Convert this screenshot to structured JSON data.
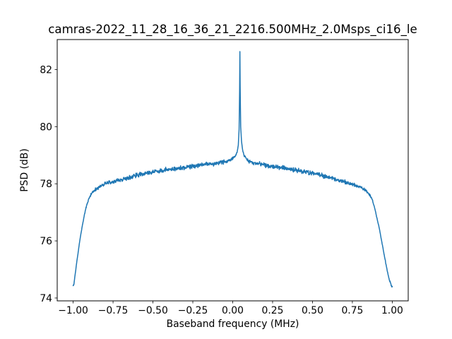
{
  "chart_data": {
    "type": "line",
    "title": "camras-2022_11_28_16_36_21_2216.500MHz_2.0Msps_ci16_le",
    "xlabel": "Baseband frequency (MHz)",
    "ylabel": "PSD (dB)",
    "xlim": [
      -1.1,
      1.1
    ],
    "ylim": [
      73.9,
      83.05
    ],
    "xticks": [
      -1.0,
      -0.75,
      -0.5,
      -0.25,
      0.0,
      0.25,
      0.5,
      0.75,
      1.0
    ],
    "xtick_labels": [
      "−1.00",
      "−0.75",
      "−0.50",
      "−0.25",
      "0.00",
      "0.25",
      "0.50",
      "0.75",
      "1.00"
    ],
    "yticks": [
      74,
      76,
      78,
      80,
      82
    ],
    "ytick_labels": [
      "74",
      "76",
      "78",
      "80",
      "82"
    ],
    "grid": false,
    "legend": null,
    "line_color": "#1f77b4",
    "line_width": 1.5,
    "noise_db": 0.065,
    "peak": {
      "x_mhz": 0.045,
      "psd_db": 82.62
    },
    "series": [
      {
        "name": "PSD",
        "points": [
          [
            -1.0,
            74.42
          ],
          [
            -0.995,
            74.5
          ],
          [
            -0.99,
            74.72
          ],
          [
            -0.98,
            75.15
          ],
          [
            -0.97,
            75.55
          ],
          [
            -0.96,
            75.95
          ],
          [
            -0.95,
            76.3
          ],
          [
            -0.94,
            76.6
          ],
          [
            -0.93,
            76.9
          ],
          [
            -0.92,
            77.15
          ],
          [
            -0.91,
            77.35
          ],
          [
            -0.9,
            77.5
          ],
          [
            -0.89,
            77.6
          ],
          [
            -0.88,
            77.7
          ],
          [
            -0.86,
            77.8
          ],
          [
            -0.83,
            77.9
          ],
          [
            -0.8,
            78.0
          ],
          [
            -0.75,
            78.08
          ],
          [
            -0.7,
            78.15
          ],
          [
            -0.65,
            78.22
          ],
          [
            -0.6,
            78.3
          ],
          [
            -0.55,
            78.36
          ],
          [
            -0.5,
            78.42
          ],
          [
            -0.45,
            78.46
          ],
          [
            -0.4,
            78.5
          ],
          [
            -0.35,
            78.54
          ],
          [
            -0.3,
            78.58
          ],
          [
            -0.25,
            78.62
          ],
          [
            -0.2,
            78.66
          ],
          [
            -0.15,
            78.7
          ],
          [
            -0.1,
            78.72
          ],
          [
            -0.06,
            78.76
          ],
          [
            -0.03,
            78.8
          ],
          [
            -0.01,
            78.85
          ],
          [
            0.005,
            78.9
          ],
          [
            0.018,
            78.98
          ],
          [
            0.028,
            79.12
          ],
          [
            0.035,
            79.35
          ],
          [
            0.04,
            79.9
          ],
          [
            0.043,
            81.0
          ],
          [
            0.045,
            82.62
          ],
          [
            0.047,
            81.2
          ],
          [
            0.05,
            80.0
          ],
          [
            0.055,
            79.5
          ],
          [
            0.062,
            79.18
          ],
          [
            0.072,
            78.98
          ],
          [
            0.085,
            78.88
          ],
          [
            0.1,
            78.8
          ],
          [
            0.13,
            78.74
          ],
          [
            0.17,
            78.7
          ],
          [
            0.22,
            78.64
          ],
          [
            0.27,
            78.6
          ],
          [
            0.32,
            78.55
          ],
          [
            0.37,
            78.5
          ],
          [
            0.42,
            78.45
          ],
          [
            0.47,
            78.4
          ],
          [
            0.52,
            78.34
          ],
          [
            0.57,
            78.28
          ],
          [
            0.62,
            78.2
          ],
          [
            0.67,
            78.12
          ],
          [
            0.72,
            78.04
          ],
          [
            0.76,
            77.96
          ],
          [
            0.8,
            77.88
          ],
          [
            0.83,
            77.78
          ],
          [
            0.85,
            77.68
          ],
          [
            0.86,
            77.6
          ],
          [
            0.87,
            77.5
          ],
          [
            0.88,
            77.35
          ],
          [
            0.89,
            77.15
          ],
          [
            0.9,
            76.9
          ],
          [
            0.91,
            76.65
          ],
          [
            0.92,
            76.4
          ],
          [
            0.93,
            76.1
          ],
          [
            0.94,
            75.8
          ],
          [
            0.95,
            75.5
          ],
          [
            0.96,
            75.2
          ],
          [
            0.97,
            74.92
          ],
          [
            0.98,
            74.68
          ],
          [
            0.99,
            74.5
          ],
          [
            1.0,
            74.4
          ]
        ]
      }
    ]
  }
}
